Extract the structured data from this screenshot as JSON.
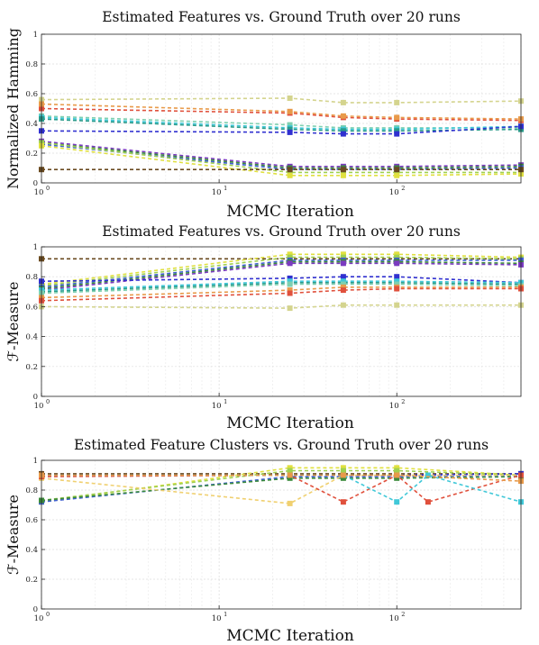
{
  "chart_data": [
    {
      "type": "line",
      "title": "Estimated Features vs. Ground Truth over 20 runs",
      "xlabel": "MCMC Iteration",
      "ylabel": "Normalized Hamming",
      "xscale": "log",
      "xlim": [
        1,
        500
      ],
      "ylim": [
        0,
        1
      ],
      "yticks": [
        "0",
        "0.2",
        "0.4",
        "0.6",
        "0.8",
        "1"
      ],
      "xticks": [
        {
          "base": "10",
          "exp": "0"
        },
        {
          "base": "10",
          "exp": "1"
        },
        {
          "base": "10",
          "exp": "2"
        }
      ],
      "grid": true,
      "series": [
        {
          "color": "#d4d48e",
          "points": [
            [
              1,
              0.56
            ],
            [
              25,
              0.57
            ],
            [
              50,
              0.54
            ],
            [
              100,
              0.54
            ],
            [
              500,
              0.55
            ]
          ]
        },
        {
          "color": "#e0503c",
          "points": [
            [
              1,
              0.5
            ],
            [
              25,
              0.47
            ],
            [
              50,
              0.44
            ],
            [
              100,
              0.43
            ],
            [
              500,
              0.42
            ]
          ]
        },
        {
          "color": "#e89a4a",
          "points": [
            [
              1,
              0.53
            ],
            [
              25,
              0.48
            ],
            [
              50,
              0.45
            ],
            [
              100,
              0.44
            ],
            [
              500,
              0.43
            ]
          ]
        },
        {
          "color": "#7ed0b0",
          "points": [
            [
              1,
              0.45
            ],
            [
              25,
              0.39
            ],
            [
              50,
              0.37
            ],
            [
              100,
              0.37
            ],
            [
              500,
              0.37
            ]
          ]
        },
        {
          "color": "#40c8d8",
          "points": [
            [
              1,
              0.44
            ],
            [
              25,
              0.37
            ],
            [
              50,
              0.36
            ],
            [
              100,
              0.36
            ],
            [
              500,
              0.38
            ]
          ]
        },
        {
          "color": "#2a9a8a",
          "points": [
            [
              1,
              0.43
            ],
            [
              25,
              0.36
            ],
            [
              50,
              0.35
            ],
            [
              100,
              0.35
            ],
            [
              500,
              0.36
            ]
          ]
        },
        {
          "color": "#3030d0",
          "points": [
            [
              1,
              0.35
            ],
            [
              25,
              0.34
            ],
            [
              50,
              0.33
            ],
            [
              100,
              0.33
            ],
            [
              500,
              0.38
            ]
          ]
        },
        {
          "color": "#7a3ac0",
          "points": [
            [
              1,
              0.28
            ],
            [
              25,
              0.11
            ],
            [
              50,
              0.11
            ],
            [
              100,
              0.11
            ],
            [
              500,
              0.12
            ]
          ]
        },
        {
          "color": "#3a8a3a",
          "points": [
            [
              1,
              0.27
            ],
            [
              25,
              0.1
            ],
            [
              50,
              0.1
            ],
            [
              100,
              0.1
            ],
            [
              500,
              0.11
            ]
          ]
        },
        {
          "color": "#4060d0",
          "points": [
            [
              1,
              0.26
            ],
            [
              25,
              0.09
            ],
            [
              50,
              0.09
            ],
            [
              100,
              0.09
            ],
            [
              500,
              0.1
            ]
          ]
        },
        {
          "color": "#a0d050",
          "points": [
            [
              1,
              0.27
            ],
            [
              25,
              0.07
            ],
            [
              50,
              0.07
            ],
            [
              100,
              0.07
            ],
            [
              500,
              0.07
            ]
          ]
        },
        {
          "color": "#e0e040",
          "points": [
            [
              1,
              0.25
            ],
            [
              25,
              0.05
            ],
            [
              50,
              0.05
            ],
            [
              100,
              0.05
            ],
            [
              500,
              0.06
            ]
          ]
        },
        {
          "color": "#6a4a20",
          "points": [
            [
              1,
              0.09
            ],
            [
              25,
              0.09
            ],
            [
              50,
              0.09
            ],
            [
              100,
              0.09
            ],
            [
              500,
              0.09
            ]
          ]
        }
      ]
    },
    {
      "type": "line",
      "title": "Estimated Features vs. Ground Truth over 20 runs",
      "xlabel": "MCMC Iteration",
      "ylabel": "ℱ-Measure",
      "xscale": "log",
      "xlim": [
        1,
        500
      ],
      "ylim": [
        0,
        1
      ],
      "yticks": [
        "0",
        "0.2",
        "0.4",
        "0.6",
        "0.8",
        "1"
      ],
      "xticks": [
        {
          "base": "10",
          "exp": "0"
        },
        {
          "base": "10",
          "exp": "1"
        },
        {
          "base": "10",
          "exp": "2"
        }
      ],
      "grid": true,
      "series": [
        {
          "color": "#6a4a20",
          "points": [
            [
              1,
              0.92
            ],
            [
              25,
              0.92
            ],
            [
              50,
              0.92
            ],
            [
              100,
              0.92
            ],
            [
              500,
              0.92
            ]
          ]
        },
        {
          "color": "#e0e040",
          "points": [
            [
              1,
              0.75
            ],
            [
              25,
              0.95
            ],
            [
              50,
              0.95
            ],
            [
              100,
              0.95
            ],
            [
              500,
              0.93
            ]
          ]
        },
        {
          "color": "#a0d050",
          "points": [
            [
              1,
              0.74
            ],
            [
              25,
              0.93
            ],
            [
              50,
              0.93
            ],
            [
              100,
              0.93
            ],
            [
              500,
              0.92
            ]
          ]
        },
        {
          "color": "#4060d0",
          "points": [
            [
              1,
              0.73
            ],
            [
              25,
              0.91
            ],
            [
              50,
              0.91
            ],
            [
              100,
              0.91
            ],
            [
              500,
              0.91
            ]
          ]
        },
        {
          "color": "#3a8a3a",
          "points": [
            [
              1,
              0.72
            ],
            [
              25,
              0.9
            ],
            [
              50,
              0.9
            ],
            [
              100,
              0.9
            ],
            [
              500,
              0.89
            ]
          ]
        },
        {
          "color": "#7a3ac0",
          "points": [
            [
              1,
              0.71
            ],
            [
              25,
              0.89
            ],
            [
              50,
              0.89
            ],
            [
              100,
              0.89
            ],
            [
              500,
              0.88
            ]
          ]
        },
        {
          "color": "#3030d0",
          "points": [
            [
              1,
              0.77
            ],
            [
              25,
              0.79
            ],
            [
              50,
              0.8
            ],
            [
              100,
              0.8
            ],
            [
              500,
              0.76
            ]
          ]
        },
        {
          "color": "#2a9a8a",
          "points": [
            [
              1,
              0.7
            ],
            [
              25,
              0.76
            ],
            [
              50,
              0.76
            ],
            [
              100,
              0.76
            ],
            [
              500,
              0.75
            ]
          ]
        },
        {
          "color": "#40c8d8",
          "points": [
            [
              1,
              0.71
            ],
            [
              25,
              0.77
            ],
            [
              50,
              0.77
            ],
            [
              100,
              0.77
            ],
            [
              500,
              0.76
            ]
          ]
        },
        {
          "color": "#7ed0b0",
          "points": [
            [
              1,
              0.69
            ],
            [
              25,
              0.75
            ],
            [
              50,
              0.75
            ],
            [
              100,
              0.75
            ],
            [
              500,
              0.74
            ]
          ]
        },
        {
          "color": "#e89a4a",
          "points": [
            [
              1,
              0.66
            ],
            [
              25,
              0.71
            ],
            [
              50,
              0.73
            ],
            [
              100,
              0.73
            ],
            [
              500,
              0.73
            ]
          ]
        },
        {
          "color": "#e0503c",
          "points": [
            [
              1,
              0.64
            ],
            [
              25,
              0.69
            ],
            [
              50,
              0.71
            ],
            [
              100,
              0.72
            ],
            [
              500,
              0.72
            ]
          ]
        },
        {
          "color": "#d4d48e",
          "points": [
            [
              1,
              0.6
            ],
            [
              25,
              0.59
            ],
            [
              50,
              0.61
            ],
            [
              100,
              0.61
            ],
            [
              500,
              0.61
            ]
          ]
        }
      ]
    },
    {
      "type": "line",
      "title": "Estimated Feature Clusters vs. Ground Truth over 20 runs",
      "xlabel": "MCMC Iteration",
      "ylabel": "ℱ-Measure",
      "xscale": "log",
      "xlim": [
        1,
        500
      ],
      "ylim": [
        0,
        1
      ],
      "yticks": [
        "0",
        "0.2",
        "0.4",
        "0.6",
        "0.8",
        "1"
      ],
      "xticks": [
        {
          "base": "10",
          "exp": "0"
        },
        {
          "base": "10",
          "exp": "1"
        },
        {
          "base": "10",
          "exp": "2"
        }
      ],
      "grid": true,
      "series": [
        {
          "color": "#6a4a20",
          "points": [
            [
              1,
              0.91
            ],
            [
              25,
              0.91
            ],
            [
              50,
              0.91
            ],
            [
              100,
              0.91
            ],
            [
              500,
              0.91
            ]
          ]
        },
        {
          "color": "#3030d0",
          "points": [
            [
              1,
              0.9
            ],
            [
              25,
              0.9
            ],
            [
              50,
              0.9
            ],
            [
              100,
              0.9
            ],
            [
              500,
              0.91
            ]
          ]
        },
        {
          "color": "#e0e040",
          "points": [
            [
              1,
              0.72
            ],
            [
              25,
              0.95
            ],
            [
              50,
              0.95
            ],
            [
              100,
              0.95
            ],
            [
              500,
              0.9
            ]
          ]
        },
        {
          "color": "#a0d050",
          "points": [
            [
              1,
              0.73
            ],
            [
              25,
              0.93
            ],
            [
              50,
              0.93
            ],
            [
              100,
              0.93
            ],
            [
              500,
              0.9
            ]
          ]
        },
        {
          "color": "#4060d0",
          "points": [
            [
              1,
              0.72
            ],
            [
              25,
              0.89
            ],
            [
              50,
              0.89
            ],
            [
              100,
              0.89
            ],
            [
              500,
              0.9
            ]
          ]
        },
        {
          "color": "#3a8a3a",
          "points": [
            [
              1,
              0.73
            ],
            [
              25,
              0.88
            ],
            [
              50,
              0.88
            ],
            [
              100,
              0.88
            ],
            [
              500,
              0.89
            ]
          ]
        },
        {
          "color": "#f0d070",
          "points": [
            [
              1,
              0.88
            ],
            [
              25,
              0.71
            ],
            [
              50,
              0.9
            ],
            [
              100,
              0.9
            ],
            [
              500,
              0.9
            ]
          ]
        },
        {
          "color": "#e0503c",
          "points": [
            [
              1,
              0.89
            ],
            [
              25,
              0.9
            ],
            [
              50,
              0.72
            ],
            [
              100,
              0.9
            ],
            [
              150,
              0.72
            ],
            [
              500,
              0.9
            ]
          ]
        },
        {
          "color": "#40c8d8",
          "points": [
            [
              1,
              0.9
            ],
            [
              25,
              0.9
            ],
            [
              50,
              0.9
            ],
            [
              100,
              0.72
            ],
            [
              150,
              0.9
            ],
            [
              500,
              0.72
            ]
          ]
        },
        {
          "color": "#e89a4a",
          "points": [
            [
              1,
              0.9
            ],
            [
              25,
              0.9
            ],
            [
              50,
              0.9
            ],
            [
              100,
              0.9
            ],
            [
              500,
              0.86
            ]
          ]
        }
      ]
    }
  ]
}
